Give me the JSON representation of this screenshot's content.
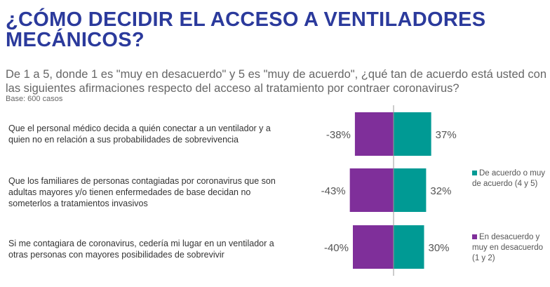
{
  "title": "¿CÓMO DECIDIR EL ACCESO A VENTILADORES MECÁNICOS?",
  "subtitle": "De 1 a 5, donde 1 es \"muy en desacuerdo\" y 5 es \"muy de acuerdo\", ¿qué tan de acuerdo está usted con las siguientes afirmaciones respecto del acceso al tratamiento por contraer coronavirus?",
  "base": "Base: 600 casos",
  "colors": {
    "agree": "#009a94",
    "disagree": "#7f2f9a"
  },
  "chart_data": {
    "type": "bar",
    "orientation": "horizontal-diverging",
    "categories": [
      "Que el personal médico decida a quién conectar a un ventilador y a quien no en relación a sus probabilidades de sobrevivencia",
      "Que los familiares de personas contagiadas por coronavirus que son adultas mayores y/o tienen enfermedades de base decidan no someterlos a tratamientos invasivos",
      "Si me contagiara de coronavirus, cedería mi lugar en un ventilador a otras personas con mayores posibilidades de sobrevivir"
    ],
    "series": [
      {
        "name": "De acuerdo o muy de acuerdo (4 y 5)",
        "values": [
          37,
          32,
          30
        ],
        "labels": [
          "37%",
          "32%",
          "30%"
        ]
      },
      {
        "name": "En desacuerdo y muy en desacuerdo (1 y 2)",
        "values": [
          -38,
          -43,
          -40
        ],
        "labels": [
          "-38%",
          "-43%",
          "-40%"
        ]
      }
    ],
    "legend": "right"
  }
}
